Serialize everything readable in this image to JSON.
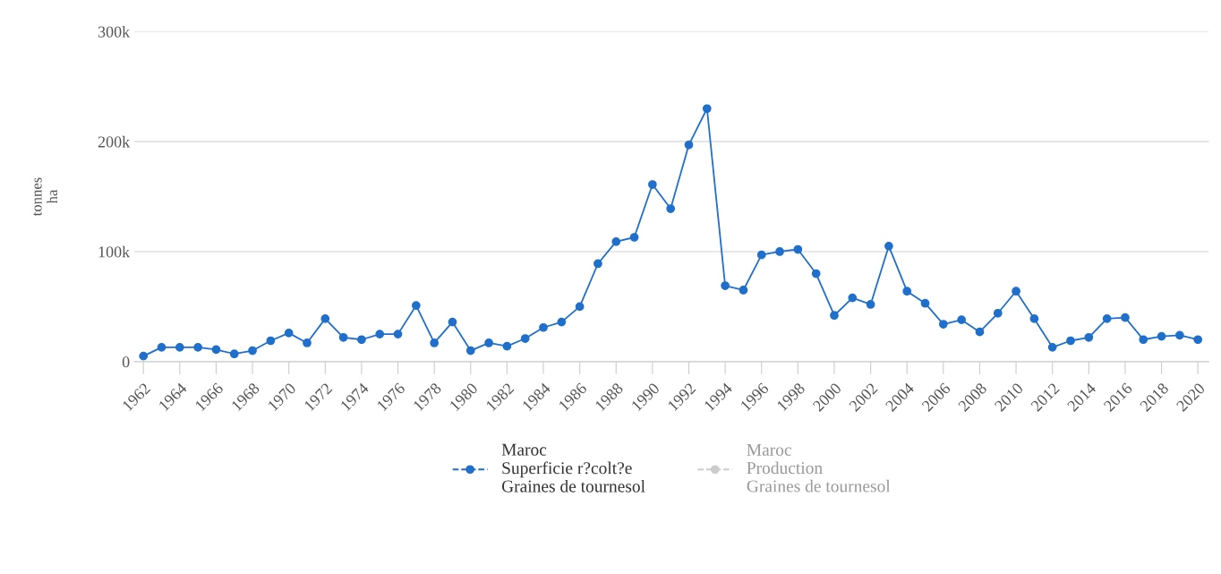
{
  "chart_data": {
    "type": "line",
    "ylabel": "tonnes\nha",
    "x": [
      1962,
      1963,
      1964,
      1965,
      1966,
      1967,
      1968,
      1969,
      1970,
      1971,
      1972,
      1973,
      1974,
      1975,
      1976,
      1977,
      1978,
      1979,
      1980,
      1981,
      1982,
      1983,
      1984,
      1985,
      1986,
      1987,
      1988,
      1989,
      1990,
      1991,
      1992,
      1993,
      1994,
      1995,
      1996,
      1997,
      1998,
      1999,
      2000,
      2001,
      2002,
      2003,
      2004,
      2005,
      2006,
      2007,
      2008,
      2009,
      2010,
      2011,
      2012,
      2013,
      2014,
      2015,
      2016,
      2017,
      2018,
      2019,
      2020
    ],
    "series": [
      {
        "name": "Maroc\nSuperficie r?colt?e\nGraines de tournesol",
        "color": "#1f6fcc",
        "values": [
          5000,
          13000,
          13000,
          13000,
          11000,
          7000,
          10000,
          19000,
          26000,
          17000,
          39000,
          22000,
          20000,
          25000,
          25000,
          51000,
          17000,
          36000,
          10000,
          17000,
          14000,
          21000,
          31000,
          36000,
          50000,
          89000,
          109000,
          113000,
          161000,
          139000,
          197000,
          230000,
          69000,
          65000,
          97000,
          100000,
          102000,
          80000,
          42000,
          58000,
          52000,
          105000,
          64000,
          53000,
          34000,
          38000,
          27000,
          44000,
          64000,
          39000,
          13000,
          19000,
          22000,
          39000,
          40000,
          20000,
          23000,
          24000,
          20000
        ]
      },
      {
        "name": "Maroc\nProduction\nGraines de tournesol",
        "color": "#cccccc",
        "values": [
          null,
          null,
          null,
          null,
          null,
          null,
          null,
          null,
          null,
          null,
          null,
          null,
          null,
          null,
          null,
          null,
          null,
          null,
          null,
          null,
          null,
          null,
          null,
          null,
          null,
          null,
          null,
          null,
          null,
          null,
          null,
          null,
          null,
          null,
          null,
          null,
          null,
          null,
          null,
          null,
          null,
          null,
          null,
          null,
          null,
          null,
          null,
          null,
          null,
          null,
          null,
          null,
          null,
          null,
          null,
          null,
          null,
          null,
          null
        ]
      }
    ],
    "xlim": [
      1961.5,
      2020.6
    ],
    "xticks": [
      1962,
      1964,
      1966,
      1968,
      1970,
      1972,
      1974,
      1976,
      1978,
      1980,
      1982,
      1984,
      1986,
      1988,
      1990,
      1992,
      1994,
      1996,
      1998,
      2000,
      2002,
      2004,
      2006,
      2008,
      2010,
      2012,
      2014,
      2016,
      2018,
      2020
    ],
    "ylim": [
      0,
      300000
    ],
    "yticks": [
      {
        "value": 0,
        "label": "0"
      },
      {
        "value": 100000,
        "label": "100k"
      },
      {
        "value": 200000,
        "label": "200k"
      },
      {
        "value": 300000,
        "label": "300k"
      }
    ],
    "grid": "y",
    "legend": "bottom",
    "marker": "circle",
    "line_style": "solid"
  }
}
